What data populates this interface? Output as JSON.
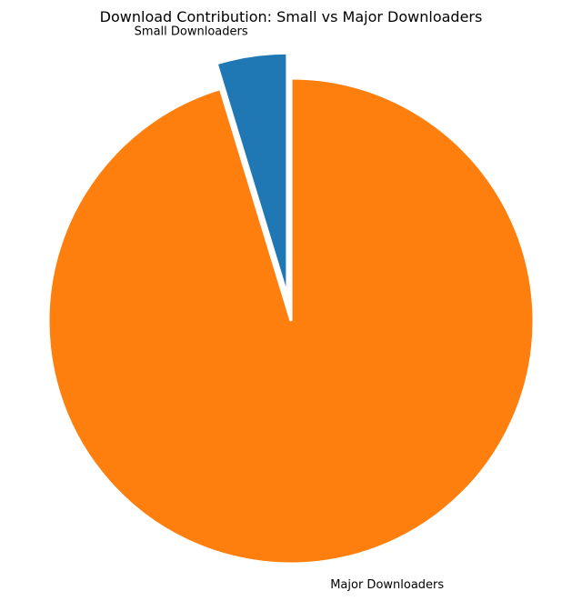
{
  "chart_data": {
    "type": "pie",
    "title": "Download Contribution: Small vs Major Downloaders",
    "categories": [
      "Small Downloaders",
      "Major Downloaders"
    ],
    "values": [
      4.7,
      95.3
    ],
    "colors": [
      "#1f77b4",
      "#ff7f0e"
    ],
    "start_angle_deg": 90,
    "direction": "counterclockwise",
    "exploded": [
      true,
      false
    ],
    "edgecolor": "#ffffff"
  }
}
